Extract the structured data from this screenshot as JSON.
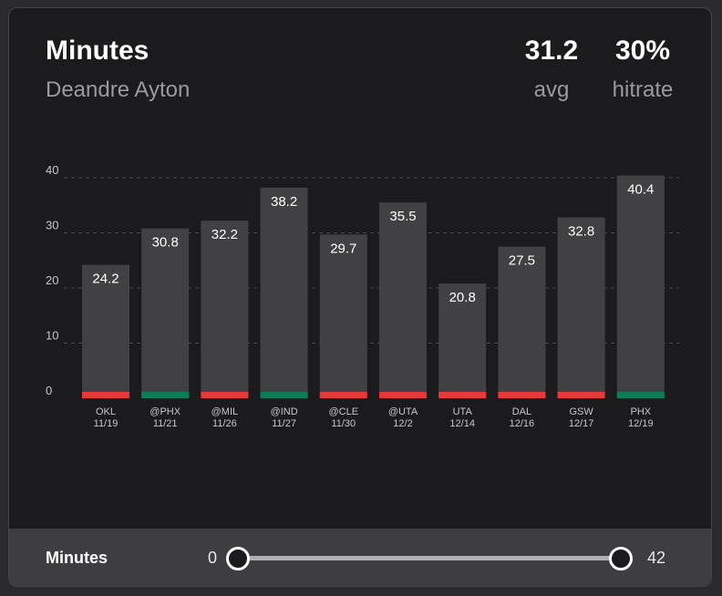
{
  "header": {
    "title": "Minutes",
    "subtitle": "Deandre Ayton",
    "avg_value": "31.2",
    "avg_label": "avg",
    "hitrate_value": "30%",
    "hitrate_label": "hitrate"
  },
  "chart_data": {
    "type": "bar",
    "title": "Minutes",
    "categories": [
      {
        "team": "OKL",
        "date": "11/19"
      },
      {
        "team": "@PHX",
        "date": "11/21"
      },
      {
        "team": "@MIL",
        "date": "11/26"
      },
      {
        "team": "@IND",
        "date": "11/27"
      },
      {
        "team": "@CLE",
        "date": "11/30"
      },
      {
        "team": "@UTA",
        "date": "12/2"
      },
      {
        "team": "UTA",
        "date": "12/14"
      },
      {
        "team": "DAL",
        "date": "12/16"
      },
      {
        "team": "GSW",
        "date": "12/17"
      },
      {
        "team": "PHX",
        "date": "12/19"
      }
    ],
    "values": [
      24.2,
      30.8,
      32.2,
      38.2,
      29.7,
      35.5,
      20.8,
      27.5,
      32.8,
      40.4
    ],
    "base_status": [
      "red",
      "green",
      "red",
      "green",
      "red",
      "red",
      "red",
      "red",
      "red",
      "green"
    ],
    "ylim": [
      0,
      40
    ],
    "yticks": [
      0,
      10,
      20,
      30,
      40
    ],
    "grid": true,
    "colors": {
      "bar": "#414143",
      "green": "#0e7d57",
      "red": "#e5393b",
      "grid": "#4a4a4d",
      "label": "#ffffff",
      "axis_text": "#c8c8cc"
    }
  },
  "footer": {
    "label": "Minutes",
    "range_min": "0",
    "range_max": "42"
  },
  "slider": {
    "min_fraction": 0,
    "max_fraction": 1
  }
}
